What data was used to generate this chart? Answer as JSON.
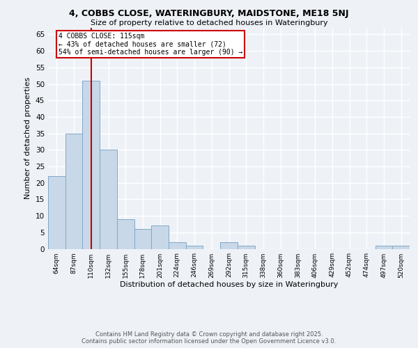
{
  "title1": "4, COBBS CLOSE, WATERINGBURY, MAIDSTONE, ME18 5NJ",
  "title2": "Size of property relative to detached houses in Wateringbury",
  "xlabel": "Distribution of detached houses by size in Wateringbury",
  "ylabel": "Number of detached properties",
  "categories": [
    "64sqm",
    "87sqm",
    "110sqm",
    "132sqm",
    "155sqm",
    "178sqm",
    "201sqm",
    "224sqm",
    "246sqm",
    "269sqm",
    "292sqm",
    "315sqm",
    "338sqm",
    "360sqm",
    "383sqm",
    "406sqm",
    "429sqm",
    "452sqm",
    "474sqm",
    "497sqm",
    "520sqm"
  ],
  "values": [
    22,
    35,
    51,
    30,
    9,
    6,
    7,
    2,
    1,
    0,
    2,
    1,
    0,
    0,
    0,
    0,
    0,
    0,
    0,
    1,
    1
  ],
  "bar_color": "#c8d8e8",
  "bar_edge_color": "#7fa8c8",
  "vline_x": 2,
  "vline_color": "#cc0000",
  "annotation_text": "4 COBBS CLOSE: 115sqm\n← 43% of detached houses are smaller (72)\n54% of semi-detached houses are larger (90) →",
  "annotation_box_color": "#ffffff",
  "annotation_box_edge": "#cc0000",
  "ylim": [
    0,
    67
  ],
  "yticks": [
    0,
    5,
    10,
    15,
    20,
    25,
    30,
    35,
    40,
    45,
    50,
    55,
    60,
    65
  ],
  "footer": "Contains HM Land Registry data © Crown copyright and database right 2025.\nContains public sector information licensed under the Open Government Licence v3.0.",
  "background_color": "#eef2f7",
  "grid_color": "#ffffff"
}
